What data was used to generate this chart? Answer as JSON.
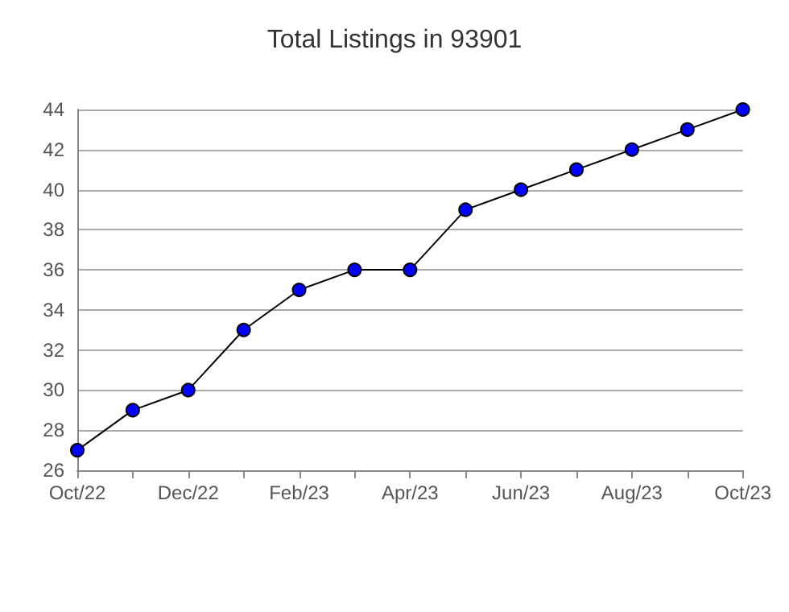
{
  "chart_data": {
    "type": "line",
    "title": "Total Listings in 93901",
    "categories": [
      "Oct/22",
      null,
      "Dec/22",
      null,
      "Feb/23",
      null,
      "Apr/23",
      null,
      "Jun/23",
      null,
      "Aug/23",
      null,
      "Oct/23"
    ],
    "series": [
      {
        "color": "#0000ff",
        "values": [
          27,
          29,
          30,
          33,
          35,
          36,
          36,
          39,
          40,
          41,
          42,
          43,
          44
        ]
      }
    ],
    "ylim": [
      26,
      44
    ],
    "yticks": [
      26,
      28,
      30,
      32,
      34,
      36,
      38,
      40,
      42,
      44
    ],
    "grid": "y",
    "marker": "circle",
    "line_style": "solid"
  }
}
